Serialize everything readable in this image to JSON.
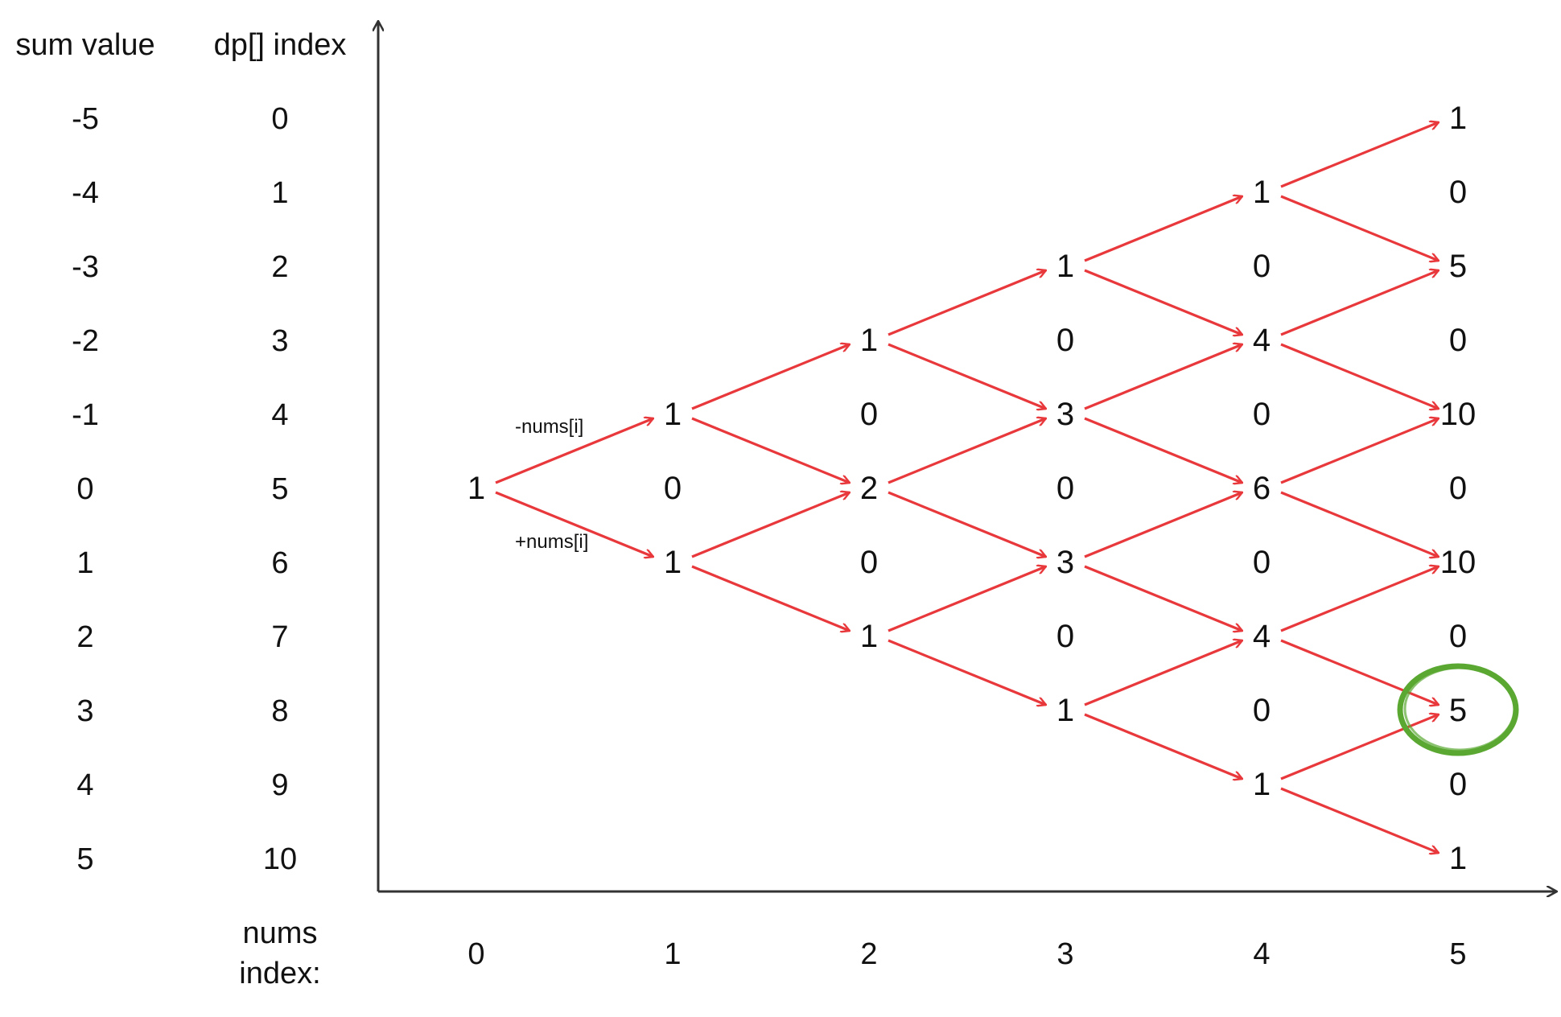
{
  "headers": {
    "sum_value": "sum value",
    "dp_index": "dp[] index",
    "nums_index_line1": "nums",
    "nums_index_line2": "index:"
  },
  "edge_labels": {
    "minus": "-nums[i]",
    "plus": "+nums[i]"
  },
  "sum_values": [
    "-5",
    "-4",
    "-3",
    "-2",
    "-1",
    "0",
    "1",
    "2",
    "3",
    "4",
    "5"
  ],
  "dp_indices": [
    "0",
    "1",
    "2",
    "3",
    "4",
    "5",
    "6",
    "7",
    "8",
    "9",
    "10"
  ],
  "nums_indices": [
    "0",
    "1",
    "2",
    "3",
    "4",
    "5"
  ],
  "columns": [
    [
      "",
      "",
      "",
      "",
      "",
      "1",
      "",
      "",
      "",
      "",
      ""
    ],
    [
      "",
      "",
      "",
      "",
      "1",
      "0",
      "1",
      "",
      "",
      "",
      ""
    ],
    [
      "",
      "",
      "",
      "1",
      "0",
      "2",
      "0",
      "1",
      "",
      "",
      ""
    ],
    [
      "",
      "",
      "1",
      "0",
      "3",
      "0",
      "3",
      "0",
      "1",
      "",
      ""
    ],
    [
      "",
      "1",
      "0",
      "4",
      "0",
      "6",
      "0",
      "4",
      "0",
      "1",
      ""
    ],
    [
      "1",
      "0",
      "5",
      "0",
      "10",
      "0",
      "10",
      "0",
      "5",
      "0",
      "1"
    ]
  ],
  "highlight": {
    "column": 5,
    "row": 8
  },
  "colors": {
    "arrow": "#e8383b",
    "highlight": "#5aa832",
    "axis": "#333333",
    "text": "#111111"
  }
}
